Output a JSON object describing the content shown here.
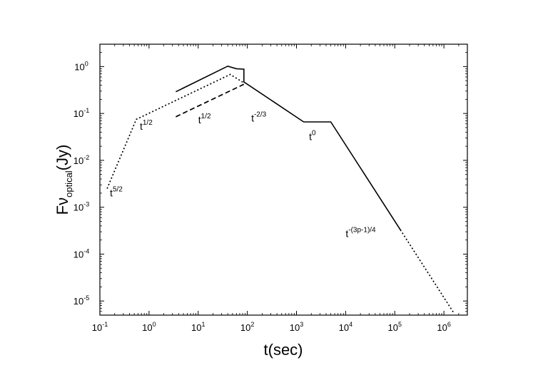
{
  "chart_data": {
    "type": "line",
    "title": "",
    "xlabel": "t(sec)",
    "ylabel": "Fν_optical(Jy)",
    "ylabel_parts": {
      "main": "Fν",
      "sub": "optical",
      "unit": "(Jy)"
    },
    "xscale": "log",
    "yscale": "log",
    "xlim": [
      0.1,
      3000000
    ],
    "ylim": [
      5e-06,
      3
    ],
    "grid": false,
    "legend": "none",
    "x_ticks": [
      {
        "base": "10",
        "exp": "-1",
        "value": 0.1
      },
      {
        "base": "10",
        "exp": "0",
        "value": 1
      },
      {
        "base": "10",
        "exp": "1",
        "value": 10
      },
      {
        "base": "10",
        "exp": "2",
        "value": 100
      },
      {
        "base": "10",
        "exp": "3",
        "value": 1000
      },
      {
        "base": "10",
        "exp": "4",
        "value": 10000
      },
      {
        "base": "10",
        "exp": "5",
        "value": 100000
      },
      {
        "base": "10",
        "exp": "6",
        "value": 1000000
      }
    ],
    "y_ticks": [
      {
        "base": "10",
        "exp": "0",
        "value": 1
      },
      {
        "base": "10",
        "exp": "-1",
        "value": 0.1
      },
      {
        "base": "10",
        "exp": "-2",
        "value": 0.01
      },
      {
        "base": "10",
        "exp": "-3",
        "value": 0.001
      },
      {
        "base": "10",
        "exp": "-4",
        "value": 0.0001
      },
      {
        "base": "10",
        "exp": "-5",
        "value": 1e-05
      }
    ],
    "series": [
      {
        "style": "dotted",
        "points": [
          [
            0.14,
            0.0025
          ],
          [
            0.55,
            0.075
          ],
          [
            45,
            0.68
          ],
          [
            85,
            0.45
          ]
        ]
      },
      {
        "style": "dashed",
        "points": [
          [
            3.5,
            0.085
          ],
          [
            85,
            0.42
          ]
        ]
      },
      {
        "style": "solid",
        "points": [
          [
            3.5,
            0.29
          ],
          [
            40,
            1.02
          ],
          [
            60,
            0.9
          ],
          [
            85,
            0.88
          ],
          [
            85,
            0.47
          ],
          [
            1400,
            0.066
          ],
          [
            5000,
            0.066
          ],
          [
            130000,
            0.00033
          ]
        ]
      },
      {
        "style": "dotted",
        "points": [
          [
            130000,
            0.00033
          ],
          [
            1600000,
            5.5e-06
          ]
        ]
      }
    ],
    "annotations": [
      {
        "base": "t",
        "exp": "5/2",
        "x": 0.16,
        "y": 0.0017
      },
      {
        "base": "t",
        "exp": "1/2",
        "x": 0.65,
        "y": 0.045
      },
      {
        "base": "t",
        "exp": "1/2",
        "x": 10,
        "y": 0.062
      },
      {
        "base": "t",
        "exp": "-2/3",
        "x": 120,
        "y": 0.067
      },
      {
        "base": "t",
        "exp": "0",
        "x": 1800,
        "y": 0.027
      },
      {
        "base": "t",
        "exp": "-(3p-1)/4",
        "x": 10000,
        "y": 0.00023
      }
    ]
  }
}
